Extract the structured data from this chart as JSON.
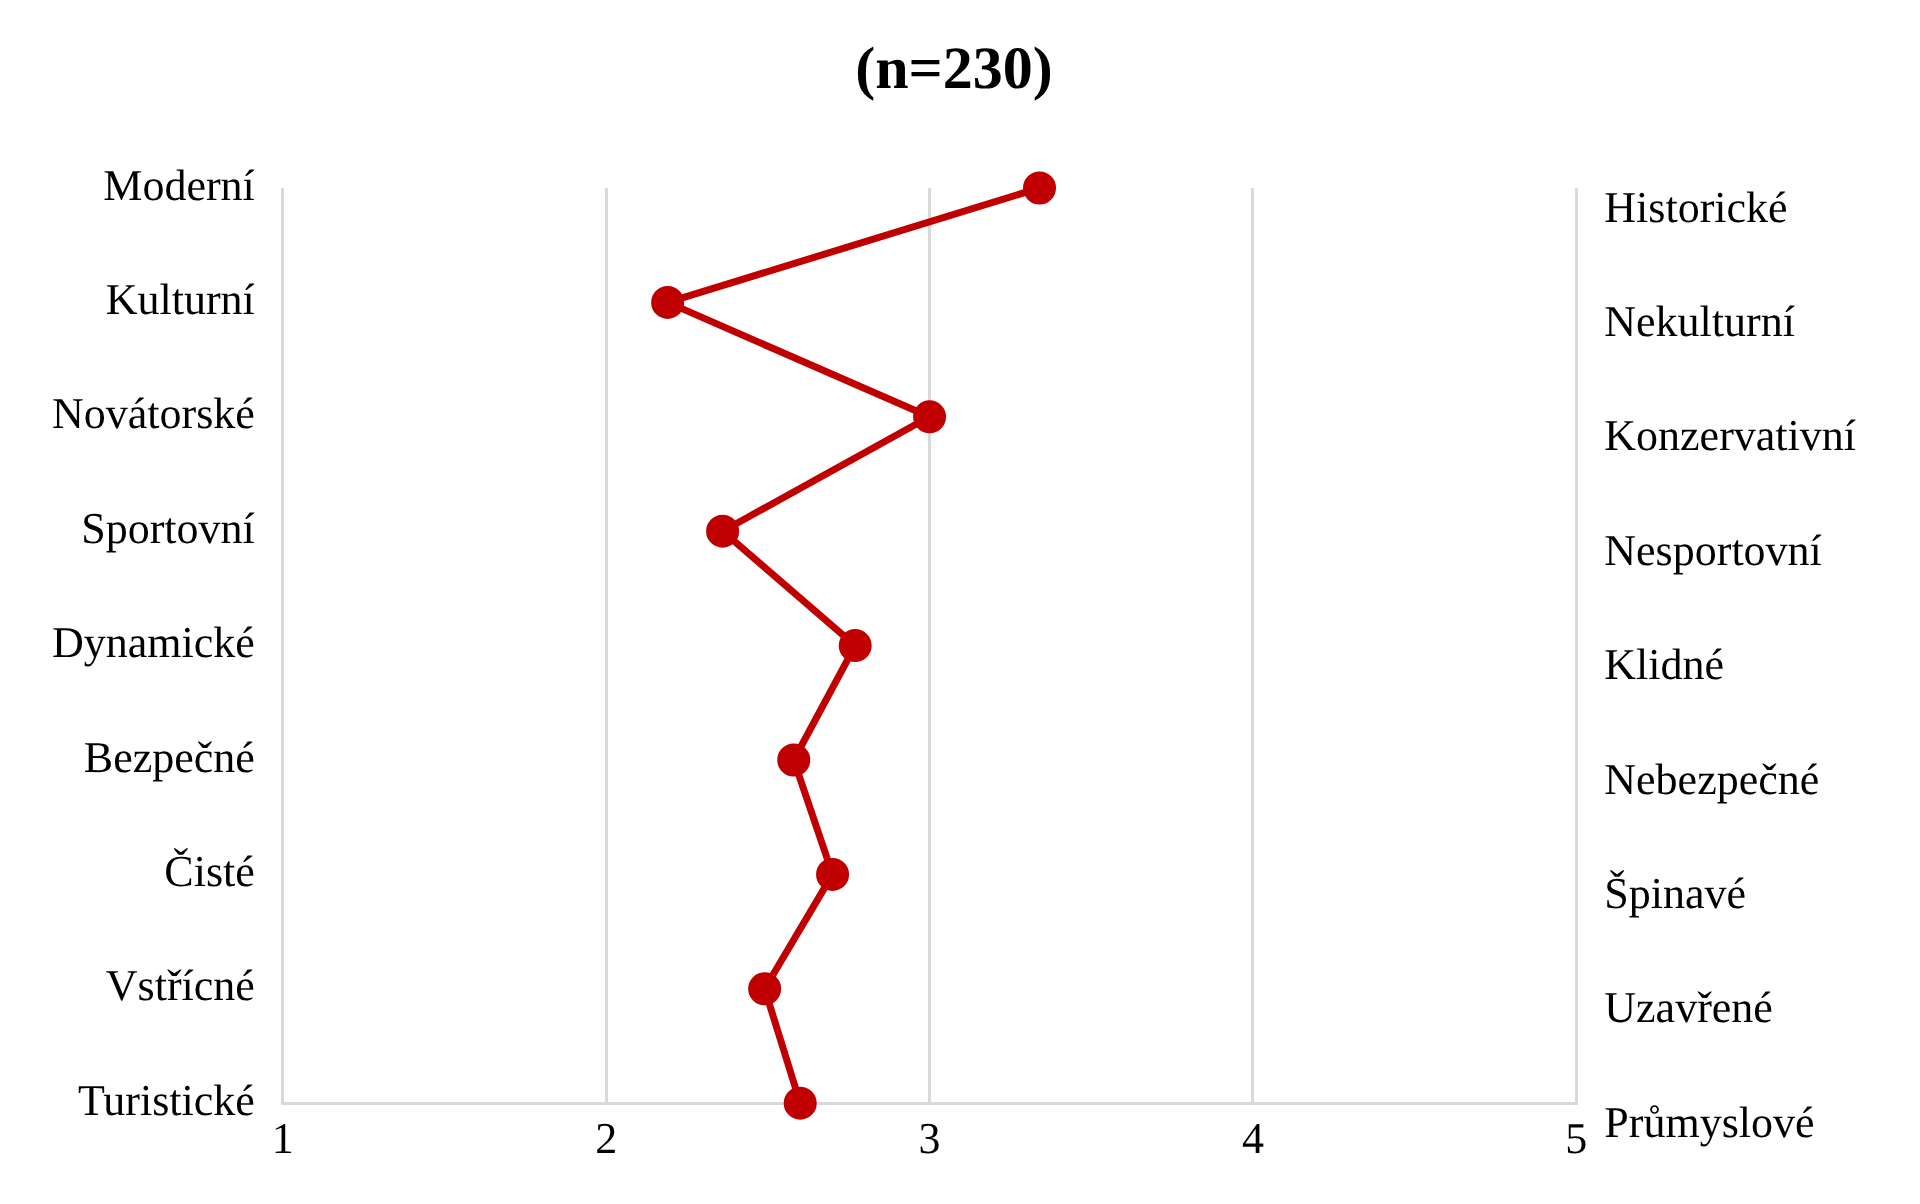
{
  "chart_data": {
    "type": "line",
    "orientation": "horizontal",
    "title": "(n=230)",
    "categories": [
      "Moderní",
      "Kulturní",
      "Novátorské",
      "Sportovní",
      "Dynamické",
      "Bezpečné",
      "Čisté",
      "Vstřícné",
      "Turistické"
    ],
    "y2_categories": [
      "Historické",
      "Nekulturní",
      "Konzervativní",
      "Nesportovní",
      "Klidné",
      "Nebezpečné",
      "Špinavé",
      "Uzavřené",
      "Průmyslové"
    ],
    "series": [
      {
        "color": "#c00000",
        "values": [
          3.34,
          2.19,
          3.0,
          2.36,
          2.77,
          2.58,
          2.7,
          2.49,
          2.6
        ]
      }
    ],
    "xlim": [
      1,
      5
    ],
    "xticks": [
      1,
      2,
      3,
      4,
      5
    ],
    "grid": "x",
    "legend": false,
    "marker": "circle",
    "line_style": "solid"
  }
}
